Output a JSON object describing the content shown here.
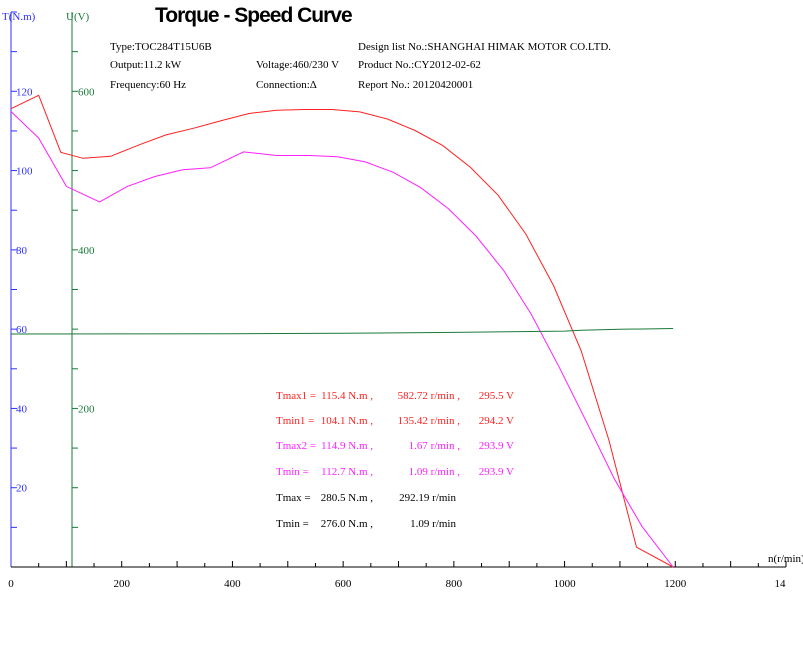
{
  "chart_data": {
    "type": "line",
    "title": "Torque - Speed Curve",
    "info": {
      "type": "Type:TOC284T15U6B",
      "output": "Output:11.2 kW",
      "frequency": "Frequency:60 Hz",
      "voltage": "Voltage:460/230 V",
      "connection": "Connection:Δ",
      "design": "Design list No.:SHANGHAI HIMAK MOTOR CO.LTD.",
      "product": "Product No.:CY2012-02-62",
      "report": "Report No.: 20120420001"
    },
    "axes": {
      "torque": {
        "label": "T(N.m)",
        "range": [
          0,
          140
        ],
        "ticks": [
          "20",
          "40",
          "60",
          "80",
          "100",
          "120"
        ]
      },
      "voltage": {
        "label": "U(V)",
        "range": [
          0,
          700
        ],
        "ticks": [
          "200",
          "400",
          "600"
        ]
      },
      "speed": {
        "label": "n(r/min)",
        "range": [
          0,
          1400
        ],
        "ticks": [
          "0",
          "200",
          "400",
          "600",
          "800",
          "1000",
          "1200",
          "14"
        ]
      }
    },
    "series": [
      {
        "color": "#ff2020",
        "axis": "torque",
        "x": [
          0,
          50,
          90,
          130,
          180,
          230,
          280,
          330,
          380,
          430,
          480,
          530,
          580,
          630,
          680,
          730,
          780,
          830,
          880,
          930,
          980,
          1030,
          1080,
          1130,
          1196
        ],
        "values": [
          115.6,
          119,
          104.6,
          103.1,
          103.6,
          106.4,
          109.0,
          110.7,
          112.6,
          114.4,
          115.2,
          115.4,
          115.4,
          114.8,
          113.0,
          110.1,
          106.3,
          100.8,
          93.8,
          84.0,
          71.0,
          54.5,
          32.0,
          5.0,
          0
        ]
      },
      {
        "color": "#ff20ff",
        "axis": "torque",
        "x": [
          0,
          50,
          100,
          160,
          210,
          260,
          310,
          360,
          420,
          480,
          540,
          590,
          640,
          690,
          740,
          790,
          840,
          890,
          940,
          990,
          1040,
          1090,
          1140,
          1196
        ],
        "values": [
          114.9,
          108.2,
          96.0,
          92.1,
          96.0,
          98.5,
          100.2,
          100.7,
          104.7,
          103.8,
          103.8,
          103.5,
          102.2,
          99.6,
          95.7,
          90.4,
          83.5,
          74.8,
          63.7,
          50.5,
          36.5,
          22.2,
          10.2,
          0
        ]
      },
      {
        "color": "#1a7a3a",
        "axis": "voltage",
        "x": [
          0,
          200,
          400,
          600,
          800,
          1000,
          1030,
          1100,
          1196
        ],
        "values": [
          293.9,
          294.0,
          294.3,
          294.8,
          295.9,
          297.5,
          298.5,
          299.8,
          300.8
        ]
      }
    ],
    "annotations": [
      {
        "color": "#ff2020",
        "label": "Tmax1 =",
        "torque": "115.4 N.m ,",
        "speed": "582.72 r/min ,",
        "volt": "295.5 V"
      },
      {
        "color": "#ff2020",
        "label": "Tmin1 =",
        "torque": "104.1 N.m ,",
        "speed": "135.42 r/min ,",
        "volt": "294.2 V"
      },
      {
        "color": "#ff20ff",
        "label": "Tmax2 =",
        "torque": "114.9 N.m ,",
        "speed": "1.67 r/min ,",
        "volt": "293.9 V"
      },
      {
        "color": "#ff20ff",
        "label": "Tmin =",
        "torque": "112.7 N.m ,",
        "speed": "1.09 r/min ,",
        "volt": "293.9 V"
      },
      {
        "color": "#000000",
        "label": "Tmax =",
        "torque": "280.5 N.m ,",
        "speed": "292.19 r/min",
        "volt": ""
      },
      {
        "color": "#000000",
        "label": "Tmin =",
        "torque": "276.0 N.m ,",
        "speed": "1.09 r/min",
        "volt": ""
      }
    ],
    "grid": false,
    "legend": "none"
  }
}
